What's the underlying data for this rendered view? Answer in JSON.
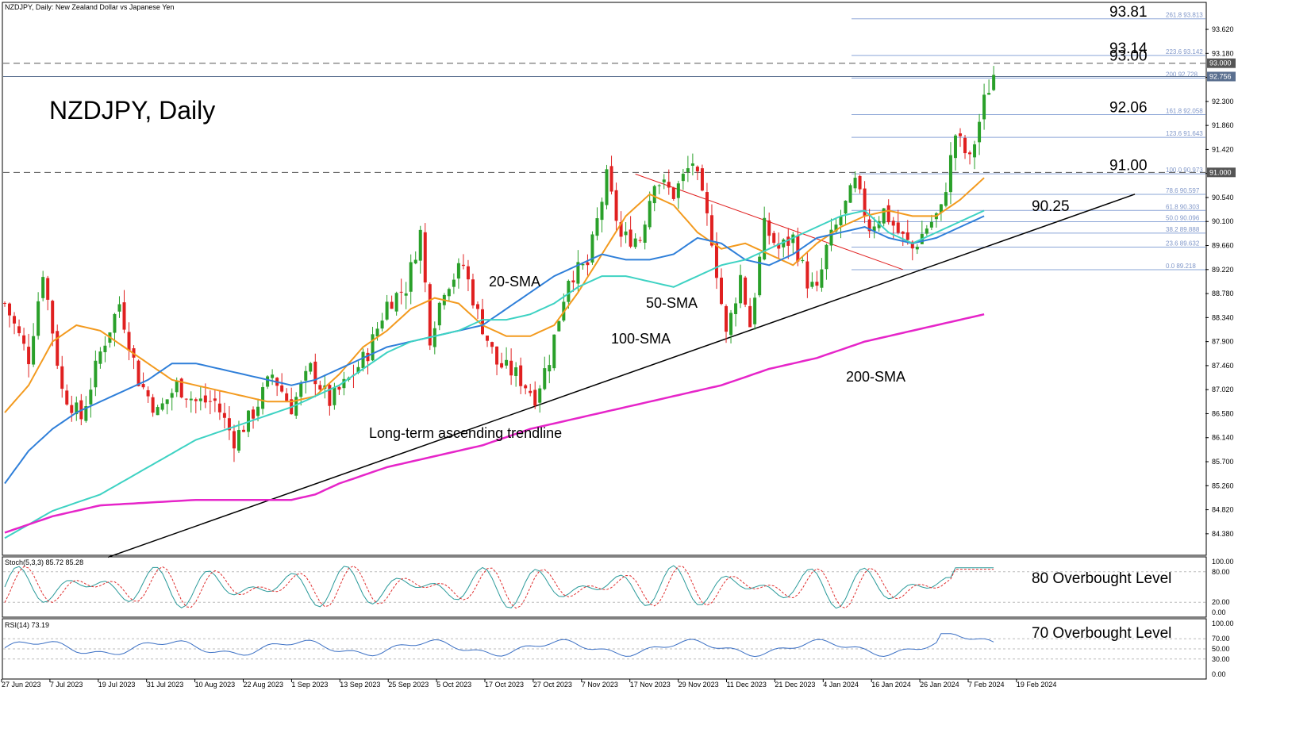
{
  "header": {
    "symbol_line": "NZDJPY, Daily:  New Zealand Dollar vs Japanese Yen"
  },
  "chart_data": {
    "type": "candlestick",
    "title": "NZDJPY, Daily",
    "price_axis": {
      "ylim": [
        84.0,
        94.1
      ],
      "ticks": [
        "93.620",
        "93.180",
        "92.740",
        "92.300",
        "91.860",
        "91.420",
        "90.980",
        "90.540",
        "90.100",
        "89.660",
        "89.220",
        "88.780",
        "88.340",
        "87.900",
        "87.460",
        "87.020",
        "86.580",
        "86.140",
        "85.700",
        "85.260",
        "84.820",
        "84.380"
      ],
      "price_tags": [
        {
          "value": "93.000",
          "color": "#555555"
        },
        {
          "value": "92.756",
          "color": "#5a6f8f"
        },
        {
          "value": "91.000",
          "color": "#555555"
        }
      ]
    },
    "x_axis": {
      "labels": [
        "27 Jun 2023",
        "7 Jul 2023",
        "19 Jul 2023",
        "31 Jul 2023",
        "10 Aug 2023",
        "22 Aug 2023",
        "1 Sep 2023",
        "13 Sep 2023",
        "25 Sep 2023",
        "5 Oct 2023",
        "17 Oct 2023",
        "27 Oct 2023",
        "7 Nov 2023",
        "17 Nov 2023",
        "29 Nov 2023",
        "11 Dec 2023",
        "21 Dec 2023",
        "4 Jan 2024",
        "16 Jan 2024",
        "26 Jan 2024",
        "7 Feb 2024",
        "19 Feb 2024"
      ]
    },
    "key_levels": [
      {
        "label": "93.81",
        "value": 93.81
      },
      {
        "label": "93.14",
        "value": 93.14
      },
      {
        "label": "93.00",
        "value": 93.0
      },
      {
        "label": "92.06",
        "value": 92.06
      },
      {
        "label": "91.00",
        "value": 91.0
      },
      {
        "label": "90.25",
        "value": 90.25
      }
    ],
    "horizontal_dashed": [
      93.0,
      91.0
    ],
    "fibonacci": [
      {
        "label": "261.8  93.813",
        "value": 93.813
      },
      {
        "label": "223.6  93.142",
        "value": 93.142
      },
      {
        "label": "200  92.728",
        "value": 92.728
      },
      {
        "label": "161.8  92.058",
        "value": 92.058
      },
      {
        "label": "123.6  91.643",
        "value": 91.643
      },
      {
        "label": "100.0  90.973",
        "value": 90.973
      },
      {
        "label": "78.6  90.597",
        "value": 90.597
      },
      {
        "label": "61.8  90.303",
        "value": 90.303
      },
      {
        "label": "50.0  90.096",
        "value": 90.096
      },
      {
        "label": "38.2  89.888",
        "value": 89.888
      },
      {
        "label": "23.6  89.632",
        "value": 89.632
      },
      {
        "label": "0.0  89.218",
        "value": 89.218
      }
    ],
    "moving_averages": [
      {
        "name": "20-SMA",
        "color": "#f39a1e",
        "points": [
          [
            0,
            86.6
          ],
          [
            5,
            87.1
          ],
          [
            10,
            87.9
          ],
          [
            15,
            88.2
          ],
          [
            20,
            88.1
          ],
          [
            25,
            87.8
          ],
          [
            30,
            87.5
          ],
          [
            35,
            87.2
          ],
          [
            40,
            87.1
          ],
          [
            45,
            87.0
          ],
          [
            50,
            86.9
          ],
          [
            55,
            86.8
          ],
          [
            60,
            86.8
          ],
          [
            65,
            86.9
          ],
          [
            70,
            87.3
          ],
          [
            75,
            87.8
          ],
          [
            80,
            88.1
          ],
          [
            85,
            88.5
          ],
          [
            90,
            88.7
          ],
          [
            95,
            88.6
          ],
          [
            100,
            88.2
          ],
          [
            105,
            88.0
          ],
          [
            110,
            88.0
          ],
          [
            115,
            88.2
          ],
          [
            120,
            88.8
          ],
          [
            125,
            89.5
          ],
          [
            130,
            90.2
          ],
          [
            135,
            90.6
          ],
          [
            140,
            90.4
          ],
          [
            145,
            89.9
          ],
          [
            150,
            89.6
          ],
          [
            155,
            89.7
          ],
          [
            160,
            89.5
          ],
          [
            165,
            89.3
          ],
          [
            170,
            89.7
          ],
          [
            175,
            90.0
          ],
          [
            180,
            90.2
          ],
          [
            185,
            90.3
          ],
          [
            190,
            90.2
          ],
          [
            195,
            90.2
          ],
          [
            200,
            90.5
          ],
          [
            205,
            90.9
          ]
        ]
      },
      {
        "name": "50-SMA",
        "color": "#2f7fd9",
        "points": [
          [
            0,
            85.3
          ],
          [
            5,
            85.9
          ],
          [
            10,
            86.3
          ],
          [
            15,
            86.6
          ],
          [
            20,
            86.8
          ],
          [
            25,
            87.0
          ],
          [
            30,
            87.2
          ],
          [
            35,
            87.5
          ],
          [
            40,
            87.5
          ],
          [
            45,
            87.4
          ],
          [
            50,
            87.3
          ],
          [
            55,
            87.2
          ],
          [
            60,
            87.1
          ],
          [
            65,
            87.2
          ],
          [
            70,
            87.4
          ],
          [
            75,
            87.6
          ],
          [
            80,
            87.8
          ],
          [
            85,
            87.9
          ],
          [
            90,
            88.0
          ],
          [
            95,
            88.1
          ],
          [
            100,
            88.2
          ],
          [
            105,
            88.5
          ],
          [
            110,
            88.8
          ],
          [
            115,
            89.1
          ],
          [
            120,
            89.3
          ],
          [
            125,
            89.5
          ],
          [
            130,
            89.4
          ],
          [
            135,
            89.4
          ],
          [
            140,
            89.5
          ],
          [
            145,
            89.8
          ],
          [
            150,
            89.7
          ],
          [
            155,
            89.4
          ],
          [
            160,
            89.3
          ],
          [
            165,
            89.5
          ],
          [
            170,
            89.8
          ],
          [
            175,
            89.9
          ],
          [
            180,
            90.0
          ],
          [
            185,
            89.8
          ],
          [
            190,
            89.7
          ],
          [
            195,
            89.8
          ],
          [
            200,
            90.0
          ],
          [
            205,
            90.2
          ]
        ]
      },
      {
        "name": "100-SMA",
        "color": "#3ed2c3",
        "points": [
          [
            0,
            84.3
          ],
          [
            10,
            84.8
          ],
          [
            20,
            85.1
          ],
          [
            30,
            85.6
          ],
          [
            40,
            86.1
          ],
          [
            50,
            86.4
          ],
          [
            60,
            86.7
          ],
          [
            65,
            86.9
          ],
          [
            70,
            87.1
          ],
          [
            75,
            87.4
          ],
          [
            80,
            87.7
          ],
          [
            85,
            87.9
          ],
          [
            90,
            88.0
          ],
          [
            95,
            88.1
          ],
          [
            100,
            88.3
          ],
          [
            105,
            88.3
          ],
          [
            110,
            88.4
          ],
          [
            115,
            88.6
          ],
          [
            120,
            88.9
          ],
          [
            125,
            89.1
          ],
          [
            130,
            89.1
          ],
          [
            135,
            89.0
          ],
          [
            140,
            88.9
          ],
          [
            145,
            89.1
          ],
          [
            150,
            89.3
          ],
          [
            155,
            89.4
          ],
          [
            160,
            89.6
          ],
          [
            165,
            89.8
          ],
          [
            170,
            90.0
          ],
          [
            175,
            90.2
          ],
          [
            180,
            90.3
          ],
          [
            185,
            89.9
          ],
          [
            190,
            89.7
          ],
          [
            195,
            89.9
          ],
          [
            200,
            90.1
          ],
          [
            205,
            90.3
          ]
        ]
      },
      {
        "name": "200-SMA",
        "color": "#e625c9",
        "points": [
          [
            0,
            84.4
          ],
          [
            10,
            84.7
          ],
          [
            20,
            84.9
          ],
          [
            30,
            84.95
          ],
          [
            40,
            85.0
          ],
          [
            50,
            85.0
          ],
          [
            60,
            85.0
          ],
          [
            65,
            85.1
          ],
          [
            70,
            85.3
          ],
          [
            80,
            85.6
          ],
          [
            90,
            85.8
          ],
          [
            100,
            86.0
          ],
          [
            110,
            86.3
          ],
          [
            120,
            86.5
          ],
          [
            130,
            86.7
          ],
          [
            140,
            86.9
          ],
          [
            150,
            87.1
          ],
          [
            160,
            87.4
          ],
          [
            170,
            87.6
          ],
          [
            180,
            87.9
          ],
          [
            190,
            88.1
          ],
          [
            200,
            88.3
          ],
          [
            205,
            88.4
          ]
        ]
      }
    ],
    "trendline": {
      "label": "Long-term ascending trendline",
      "from": [
        0,
        83.7
      ],
      "to": [
        205,
        90.6
      ]
    },
    "fib_swing": {
      "from": [
        132,
        90.97
      ],
      "to": [
        188,
        89.22
      ]
    },
    "annotations": [
      {
        "text": "20-SMA",
        "x": 616,
        "y": 361
      },
      {
        "text": "50-SMA",
        "x": 814,
        "y": 388
      },
      {
        "text": "100-SMA",
        "x": 770,
        "y": 433
      },
      {
        "text": "200-SMA",
        "x": 1066,
        "y": 481
      },
      {
        "text": "Long-term ascending trendline",
        "x": 465,
        "y": 552
      }
    ],
    "stochastic": {
      "label": "Stoch(5,3,3) 85.72 85.28",
      "ticks": [
        "100.00",
        "80.00",
        "20.00",
        "0.00"
      ],
      "level_note": "80 Overbought Level",
      "k_color": "#2a9a9a",
      "d_color": "#e03030"
    },
    "rsi": {
      "label": "RSI(14) 73.19",
      "ticks": [
        "100.00",
        "70.00",
        "50.00",
        "30.00",
        "0.00"
      ],
      "level_note": "70 Overbought Level",
      "color": "#3a6fc4"
    },
    "colors": {
      "bull": "#2aa02a",
      "bear": "#e02020",
      "grid": "#d8d8d8",
      "fib": "#8aa4d6"
    }
  }
}
